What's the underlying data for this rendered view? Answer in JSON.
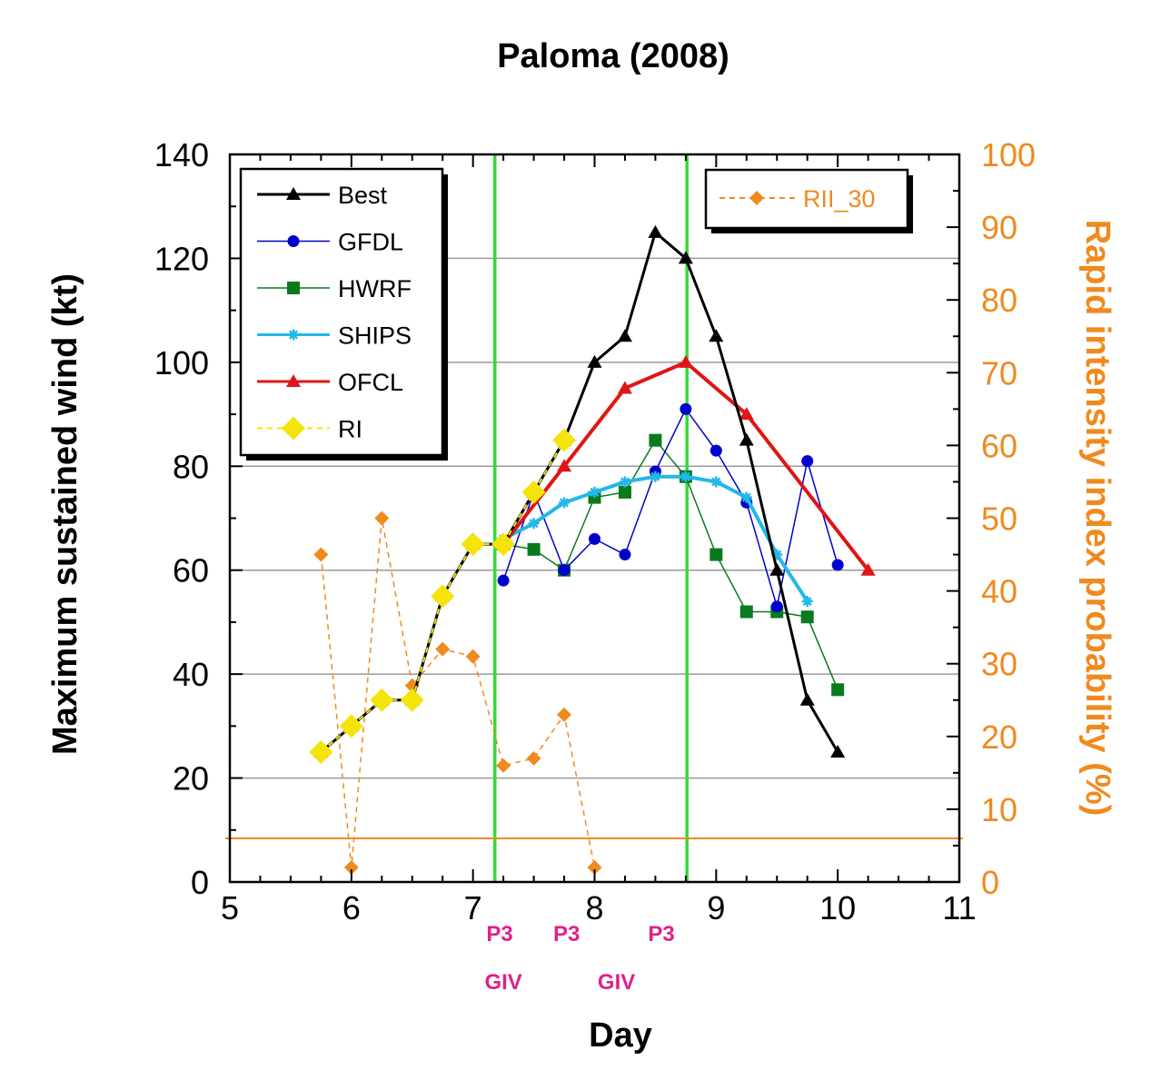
{
  "chart_data": {
    "type": "line",
    "title": "Paloma (2008)",
    "xlabel": "Day",
    "ylabel_left": "Maximum sustained wind (kt)",
    "ylabel_right": "Rapid intensity index probability (%)",
    "xlim": [
      5,
      11
    ],
    "ylim_left": [
      0,
      140
    ],
    "ylim_right": [
      0,
      100
    ],
    "x_ticks": [
      "5",
      "6",
      "7",
      "8",
      "9",
      "10",
      "11"
    ],
    "y_ticks_left": [
      "0",
      "20",
      "40",
      "60",
      "80",
      "100",
      "120",
      "140"
    ],
    "y_ticks_right": [
      "0",
      "10",
      "20",
      "30",
      "40",
      "50",
      "60",
      "70",
      "80",
      "90",
      "100"
    ],
    "grid": "horizontal",
    "legend_left_position": "top-left",
    "legend_right_position": "top-right",
    "vertical_lines": [
      7.18,
      8.76
    ],
    "right_threshold": 6,
    "flights": [
      {
        "x": 7.22,
        "row": 1,
        "label": "P3"
      },
      {
        "x": 7.77,
        "row": 1,
        "label": "P3"
      },
      {
        "x": 8.55,
        "row": 1,
        "label": "P3"
      },
      {
        "x": 7.25,
        "row": 2,
        "label": "GIV"
      },
      {
        "x": 8.18,
        "row": 2,
        "label": "GIV"
      }
    ],
    "series": [
      {
        "name": "Best",
        "axis": "left",
        "color": "#000000",
        "marker": "triangle",
        "style": "solid",
        "width": 3,
        "x": [
          5.75,
          6.0,
          6.25,
          6.5,
          6.75,
          7.0,
          7.25,
          7.5,
          7.75,
          8.0,
          8.25,
          8.5,
          8.75,
          9.0,
          9.25,
          9.5,
          9.75,
          10.0
        ],
        "y": [
          25,
          30,
          35,
          35,
          55,
          65,
          65,
          75,
          85,
          100,
          105,
          125,
          120,
          105,
          85,
          60,
          35,
          25
        ]
      },
      {
        "name": "GFDL",
        "axis": "left",
        "color": "#0000cc",
        "marker": "circle",
        "style": "solid",
        "width": 1.5,
        "x": [
          7.25,
          7.5,
          7.75,
          8.0,
          8.25,
          8.5,
          8.75,
          9.0,
          9.25,
          9.5,
          9.75,
          10.0
        ],
        "y": [
          58,
          75,
          60,
          66,
          63,
          79,
          91,
          83,
          73,
          53,
          81,
          61
        ]
      },
      {
        "name": "HWRF",
        "axis": "left",
        "color": "#0a7a1e",
        "marker": "square",
        "style": "solid",
        "width": 1.5,
        "x": [
          7.25,
          7.5,
          7.75,
          8.0,
          8.25,
          8.5,
          8.75,
          9.0,
          9.25,
          9.5,
          9.75,
          10.0
        ],
        "y": [
          65,
          64,
          60,
          74,
          75,
          85,
          78,
          63,
          52,
          52,
          51,
          37
        ]
      },
      {
        "name": "SHIPS",
        "axis": "left",
        "color": "#22b8e8",
        "marker": "star",
        "style": "solid",
        "width": 4,
        "x": [
          7.25,
          7.5,
          7.75,
          8.0,
          8.25,
          8.5,
          8.75,
          9.0,
          9.25,
          9.5,
          9.75
        ],
        "y": [
          66,
          69,
          73,
          75,
          77,
          78,
          78,
          77,
          74,
          63,
          54
        ]
      },
      {
        "name": "OFCL",
        "axis": "left",
        "color": "#e01515",
        "marker": "triangle",
        "style": "solid",
        "width": 4,
        "x": [
          7.25,
          7.75,
          8.25,
          8.75,
          9.25,
          10.25
        ],
        "y": [
          65,
          80,
          95,
          100,
          90,
          60
        ]
      },
      {
        "name": "RI",
        "axis": "left",
        "color": "#f5e40a",
        "marker": "diamond",
        "style": "dashed",
        "width": 2,
        "x": [
          5.75,
          6.0,
          6.25,
          6.5,
          6.75,
          7.0,
          7.25,
          7.5,
          7.75
        ],
        "y": [
          25,
          30,
          35,
          35,
          55,
          65,
          65,
          75,
          85
        ]
      },
      {
        "name": "RII_30",
        "axis": "right",
        "color": "#f08a1e",
        "marker": "small-diamond",
        "style": "dashed",
        "width": 1.5,
        "x": [
          5.75,
          6.0,
          6.25,
          6.5,
          6.75,
          7.0,
          7.25,
          7.5,
          7.75,
          8.0
        ],
        "y": [
          45,
          2,
          50,
          27,
          32,
          31,
          16,
          17,
          23,
          2
        ]
      }
    ]
  }
}
